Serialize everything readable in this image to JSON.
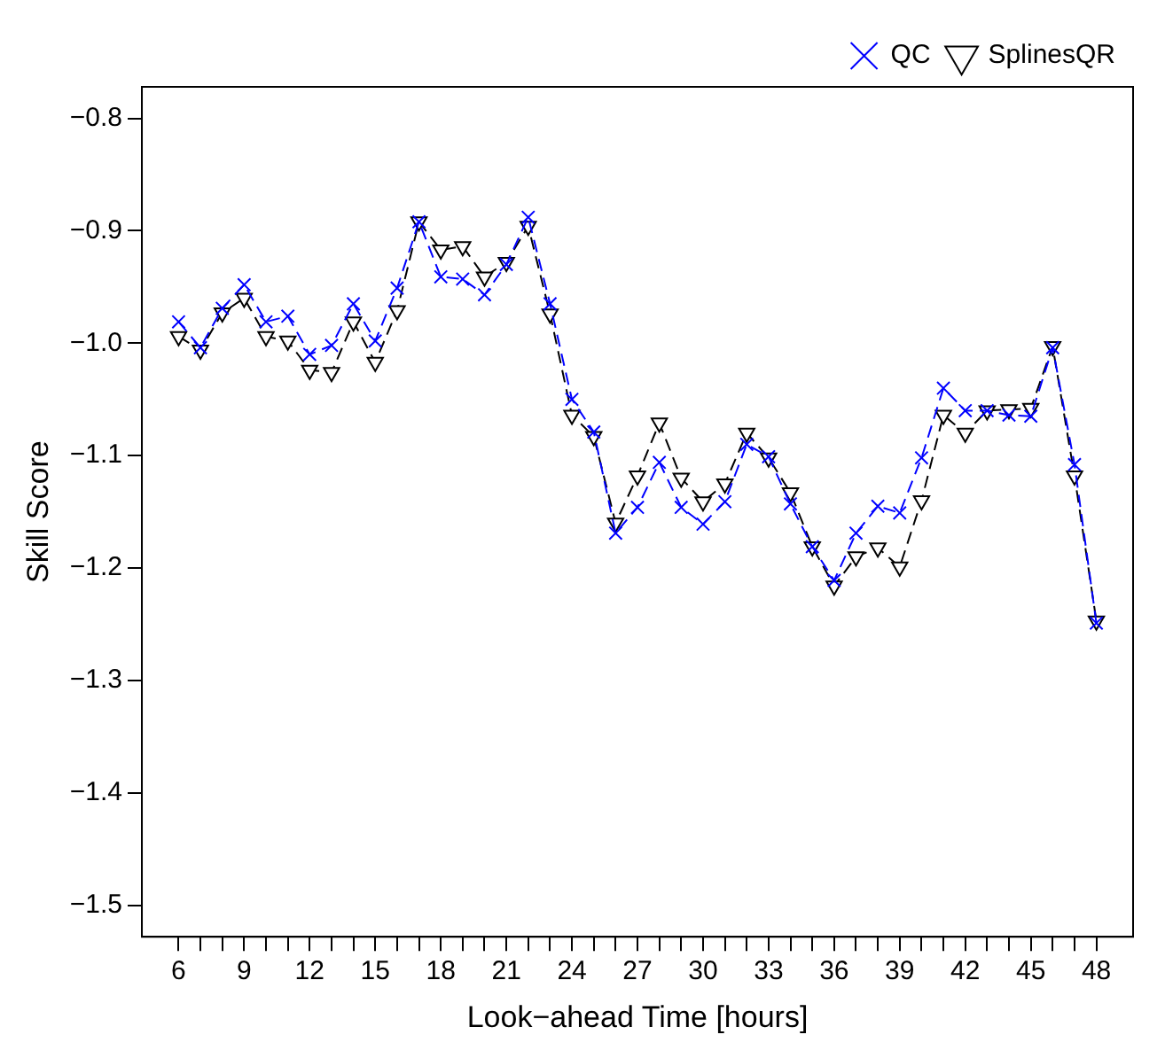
{
  "chart_data": {
    "type": "line",
    "xlabel": "Look−ahead Time [hours]",
    "ylabel": "Skill Score",
    "x": [
      6,
      7,
      8,
      9,
      10,
      11,
      12,
      13,
      14,
      15,
      16,
      17,
      18,
      19,
      20,
      21,
      22,
      23,
      24,
      25,
      26,
      27,
      28,
      29,
      30,
      31,
      32,
      33,
      34,
      35,
      36,
      37,
      38,
      39,
      40,
      41,
      42,
      43,
      44,
      45,
      46,
      47,
      48
    ],
    "series": [
      {
        "name": "QC",
        "color": "#0000ff",
        "marker": "cross",
        "line_style": "dashed",
        "values": [
          -0.981,
          -1.004,
          -0.969,
          -0.948,
          -0.981,
          -0.976,
          -1.01,
          -1.002,
          -0.965,
          -0.998,
          -0.951,
          -0.892,
          -0.941,
          -0.943,
          -0.957,
          -0.93,
          -0.888,
          -0.965,
          -1.05,
          -1.079,
          -1.169,
          -1.146,
          -1.106,
          -1.146,
          -1.161,
          -1.141,
          -1.09,
          -1.101,
          -1.143,
          -1.181,
          -1.211,
          -1.169,
          -1.145,
          -1.151,
          -1.102,
          -1.04,
          -1.06,
          -1.06,
          -1.064,
          -1.065,
          -1.004,
          -1.108,
          -1.249
        ]
      },
      {
        "name": "SplinesQR",
        "color": "#000000",
        "marker": "triangle",
        "line_style": "dashed",
        "values": [
          -0.994,
          -1.006,
          -0.973,
          -0.96,
          -0.994,
          -0.998,
          -1.024,
          -1.026,
          -0.981,
          -1.017,
          -0.971,
          -0.892,
          -0.917,
          -0.914,
          -0.941,
          -0.928,
          -0.896,
          -0.974,
          -1.064,
          -1.083,
          -1.16,
          -1.118,
          -1.071,
          -1.12,
          -1.141,
          -1.125,
          -1.08,
          -1.102,
          -1.133,
          -1.181,
          -1.216,
          -1.19,
          -1.182,
          -1.199,
          -1.14,
          -1.064,
          -1.08,
          -1.06,
          -1.059,
          -1.058,
          -1.003,
          -1.118,
          -1.247
        ]
      }
    ],
    "xlim": [
      4.32,
      49.68
    ],
    "xticks": [
      6,
      {
        "value": 7,
        "label": null
      },
      {
        "value": 8,
        "label": null
      },
      9,
      {
        "value": 10,
        "label": null
      },
      {
        "value": 11,
        "label": null
      },
      12,
      {
        "value": 13,
        "label": null
      },
      {
        "value": 14,
        "label": null
      },
      15,
      {
        "value": 16,
        "label": null
      },
      {
        "value": 17,
        "label": null
      },
      18,
      {
        "value": 19,
        "label": null
      },
      {
        "value": 20,
        "label": null
      },
      21,
      {
        "value": 22,
        "label": null
      },
      {
        "value": 23,
        "label": null
      },
      24,
      {
        "value": 25,
        "label": null
      },
      {
        "value": 26,
        "label": null
      },
      27,
      {
        "value": 28,
        "label": null
      },
      {
        "value": 29,
        "label": null
      },
      30,
      {
        "value": 31,
        "label": null
      },
      {
        "value": 32,
        "label": null
      },
      33,
      {
        "value": 34,
        "label": null
      },
      {
        "value": 35,
        "label": null
      },
      36,
      {
        "value": 37,
        "label": null
      },
      {
        "value": 38,
        "label": null
      },
      39,
      {
        "value": 40,
        "label": null
      },
      {
        "value": 41,
        "label": null
      },
      42,
      {
        "value": 43,
        "label": null
      },
      {
        "value": 44,
        "label": null
      },
      45,
      {
        "value": 46,
        "label": null
      },
      {
        "value": 47,
        "label": null
      },
      48
    ],
    "ylim": [
      -1.528,
      -0.772
    ],
    "yticks": [
      {
        "value": -1.5,
        "label": "−1.5"
      },
      {
        "value": -1.4,
        "label": "−1.4"
      },
      {
        "value": -1.3,
        "label": "−1.3"
      },
      {
        "value": -1.2,
        "label": "−1.2"
      },
      {
        "value": -1.1,
        "label": "−1.1"
      },
      {
        "value": -1.0,
        "label": "−1.0"
      },
      {
        "value": -0.9,
        "label": "−0.9"
      },
      {
        "value": -0.8,
        "label": "−0.8"
      }
    ],
    "grid": false,
    "legend": "top right"
  }
}
